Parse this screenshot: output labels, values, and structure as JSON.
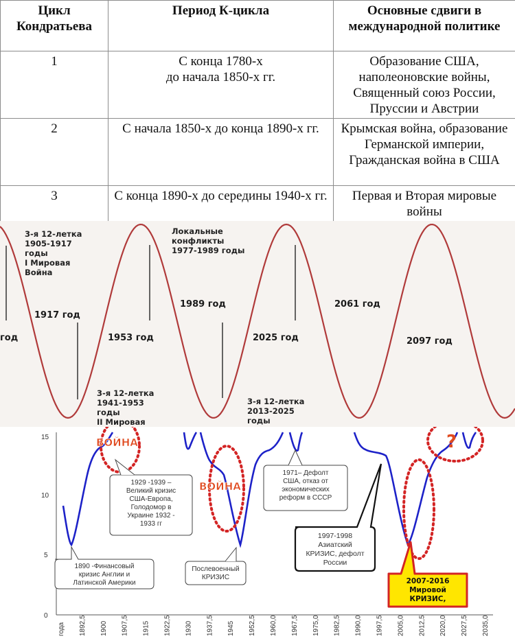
{
  "table": {
    "headers": [
      "Цикл Кондратьева",
      "Период К-цикла",
      "Основные сдвиги в международной политике"
    ],
    "rows": [
      {
        "n": "1",
        "period": "С конца 1780-х\nдо начала 1850-х гг.",
        "events": "Образование США, наполеоновские войны, Священный союз России, Пруссии и Австрии"
      },
      {
        "n": "2",
        "period": "С начала 1850-х до конца 1890-х гг.",
        "events": "Крымская война, образование Германской империи, Гражданская война в США"
      },
      {
        "n": "3",
        "period": "С конца 1890-х до середины 1940-х гг.",
        "events": "Первая и Вторая мировые войны"
      }
    ]
  },
  "cycles": {
    "color": "#b03a3a",
    "label_a": "3-я 12-летка\n1905-1917\nгоды\nI Мировая\nВойна",
    "label_b": "Локальные\nконфликты\n1977-1989 годы",
    "label_c": "3-я 12-летка\n1941-1953\nгоды\nII Мировая",
    "label_d": "3-я 12-летка\n2013-2025\nгоды",
    "years": [
      "год",
      "1917 год",
      "1953 год",
      "1989 год",
      "2025 год",
      "2061 год",
      "2097 год"
    ]
  },
  "chart_data": {
    "type": "line",
    "series_color": "#1d22c8",
    "ylim": [
      0,
      15
    ],
    "y_ticks": [
      "0",
      "5",
      "10",
      "15"
    ],
    "x_ticks": [
      "года",
      "1892,5",
      "1900",
      "1907,5",
      "1915",
      "1922,5",
      "1930",
      "1937,5",
      "1945",
      "1952,5",
      "1960,0",
      "1967,5",
      "1975,0",
      "1982,5",
      "1990,0",
      "1997,5",
      "2005,0",
      "2012,5",
      "2020,0",
      "2027,5",
      "2035,0"
    ],
    "war_labels": [
      "ВОЙНА",
      "ВОЙНА"
    ],
    "question_mark": "?",
    "annotations": [
      "1890 -Финансовый кризис Англии и Латинской Америки",
      "1929 -1939 – Великий кризис США-Европа, Голодомор в Украине 1932 - 1933 гг",
      "Послевоенный КРИЗИС",
      "1971– Дефолт США, отказ от экономических реформ в СССР",
      "1997-1998 Азиатский КРИЗИС, дефолт России",
      "2007-2016 Мировой КРИЗИС,"
    ],
    "highlight_color": "#ffe600",
    "war_color": "#e04a1f"
  }
}
